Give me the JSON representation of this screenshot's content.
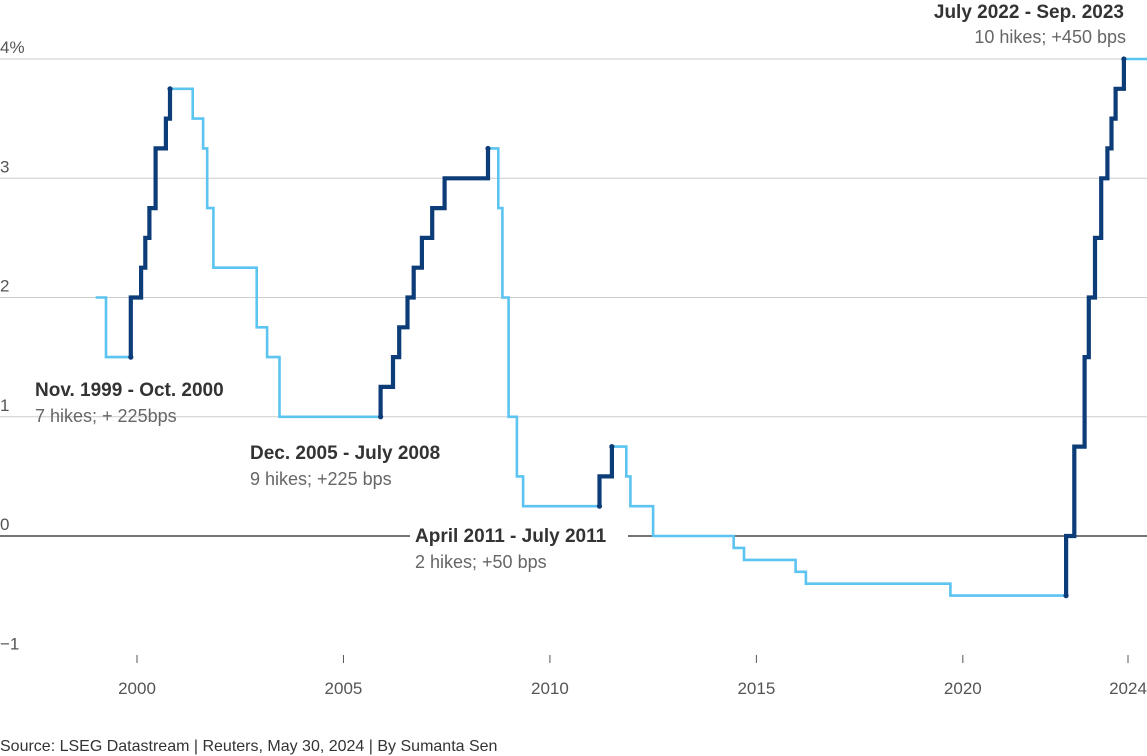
{
  "chart_data": {
    "type": "line",
    "step": true,
    "title": "",
    "xlabel": "",
    "ylabel": "",
    "xlim": [
      1997.9,
      2024.6
    ],
    "ylim": [
      -1,
      4
    ],
    "grid": true,
    "y_ticks": [
      {
        "value": 4,
        "label": "4%"
      },
      {
        "value": 3,
        "label": "3"
      },
      {
        "value": 2,
        "label": "2"
      },
      {
        "value": 1,
        "label": "1"
      },
      {
        "value": 0,
        "label": "0"
      },
      {
        "value": -1,
        "label": "−1"
      }
    ],
    "x_ticks": [
      {
        "value": 2000,
        "label": "2000"
      },
      {
        "value": 2005,
        "label": "2005"
      },
      {
        "value": 2010,
        "label": "2010"
      },
      {
        "value": 2015,
        "label": "2015"
      },
      {
        "value": 2020,
        "label": "2020"
      },
      {
        "value": 2024,
        "label": "2024"
      }
    ],
    "colors": {
      "rate": "#5bc4f0",
      "hikes": "#0d3d78",
      "grid": "#cccccc",
      "zero": "#222222"
    },
    "series": [
      {
        "points": [
          [
            1999.0,
            2.0
          ],
          [
            1999.25,
            1.5
          ],
          [
            1999.85,
            2.0
          ],
          [
            2000.1,
            2.25
          ],
          [
            2000.2,
            2.5
          ],
          [
            2000.3,
            2.75
          ],
          [
            2000.45,
            3.25
          ],
          [
            2000.7,
            3.5
          ],
          [
            2000.8,
            3.75
          ],
          [
            2001.35,
            3.5
          ],
          [
            2001.6,
            3.25
          ],
          [
            2001.7,
            2.75
          ],
          [
            2001.85,
            2.25
          ],
          [
            2002.9,
            1.75
          ],
          [
            2003.15,
            1.5
          ],
          [
            2003.45,
            1.0
          ],
          [
            2005.9,
            1.25
          ],
          [
            2006.2,
            1.5
          ],
          [
            2006.35,
            1.75
          ],
          [
            2006.55,
            2.0
          ],
          [
            2006.7,
            2.25
          ],
          [
            2006.9,
            2.5
          ],
          [
            2007.15,
            2.75
          ],
          [
            2007.45,
            3.0
          ],
          [
            2008.5,
            3.25
          ],
          [
            2008.75,
            2.75
          ],
          [
            2008.85,
            2.0
          ],
          [
            2009.0,
            1.0
          ],
          [
            2009.2,
            0.5
          ],
          [
            2009.35,
            0.25
          ],
          [
            2011.2,
            0.5
          ],
          [
            2011.5,
            0.75
          ],
          [
            2011.85,
            0.5
          ],
          [
            2011.95,
            0.25
          ],
          [
            2012.5,
            0.0
          ],
          [
            2014.45,
            -0.1
          ],
          [
            2014.7,
            -0.2
          ],
          [
            2015.95,
            -0.3
          ],
          [
            2016.2,
            -0.4
          ],
          [
            2019.7,
            -0.5
          ],
          [
            2022.5,
            0.0
          ],
          [
            2022.7,
            0.75
          ],
          [
            2022.95,
            1.5
          ],
          [
            2023.05,
            2.0
          ],
          [
            2023.2,
            2.5
          ],
          [
            2023.35,
            3.0
          ],
          [
            2023.5,
            3.25
          ],
          [
            2023.6,
            3.5
          ],
          [
            2023.7,
            3.75
          ],
          [
            2023.9,
            4.0
          ],
          [
            2024.55,
            4.0
          ]
        ]
      }
    ],
    "hike_periods": [
      {
        "start": 1999.85,
        "end": 2000.8,
        "title": "Nov. 1999 - Oct. 2000",
        "note": "7 hikes; + 225bps"
      },
      {
        "start": 2005.9,
        "end": 2008.5,
        "title": "Dec. 2005 - July 2008",
        "note": "9 hikes; +225 bps"
      },
      {
        "start": 2011.2,
        "end": 2011.5,
        "title": "April 2011 - July 2011",
        "note": "2 hikes; +50 bps"
      },
      {
        "start": 2022.5,
        "end": 2023.9,
        "title": "July 2022 - Sep. 2023",
        "note": "10 hikes; +450 bps"
      }
    ]
  },
  "source_text": "Source: LSEG Datastream | Reuters, May 30, 2024 | By Sumanta Sen"
}
